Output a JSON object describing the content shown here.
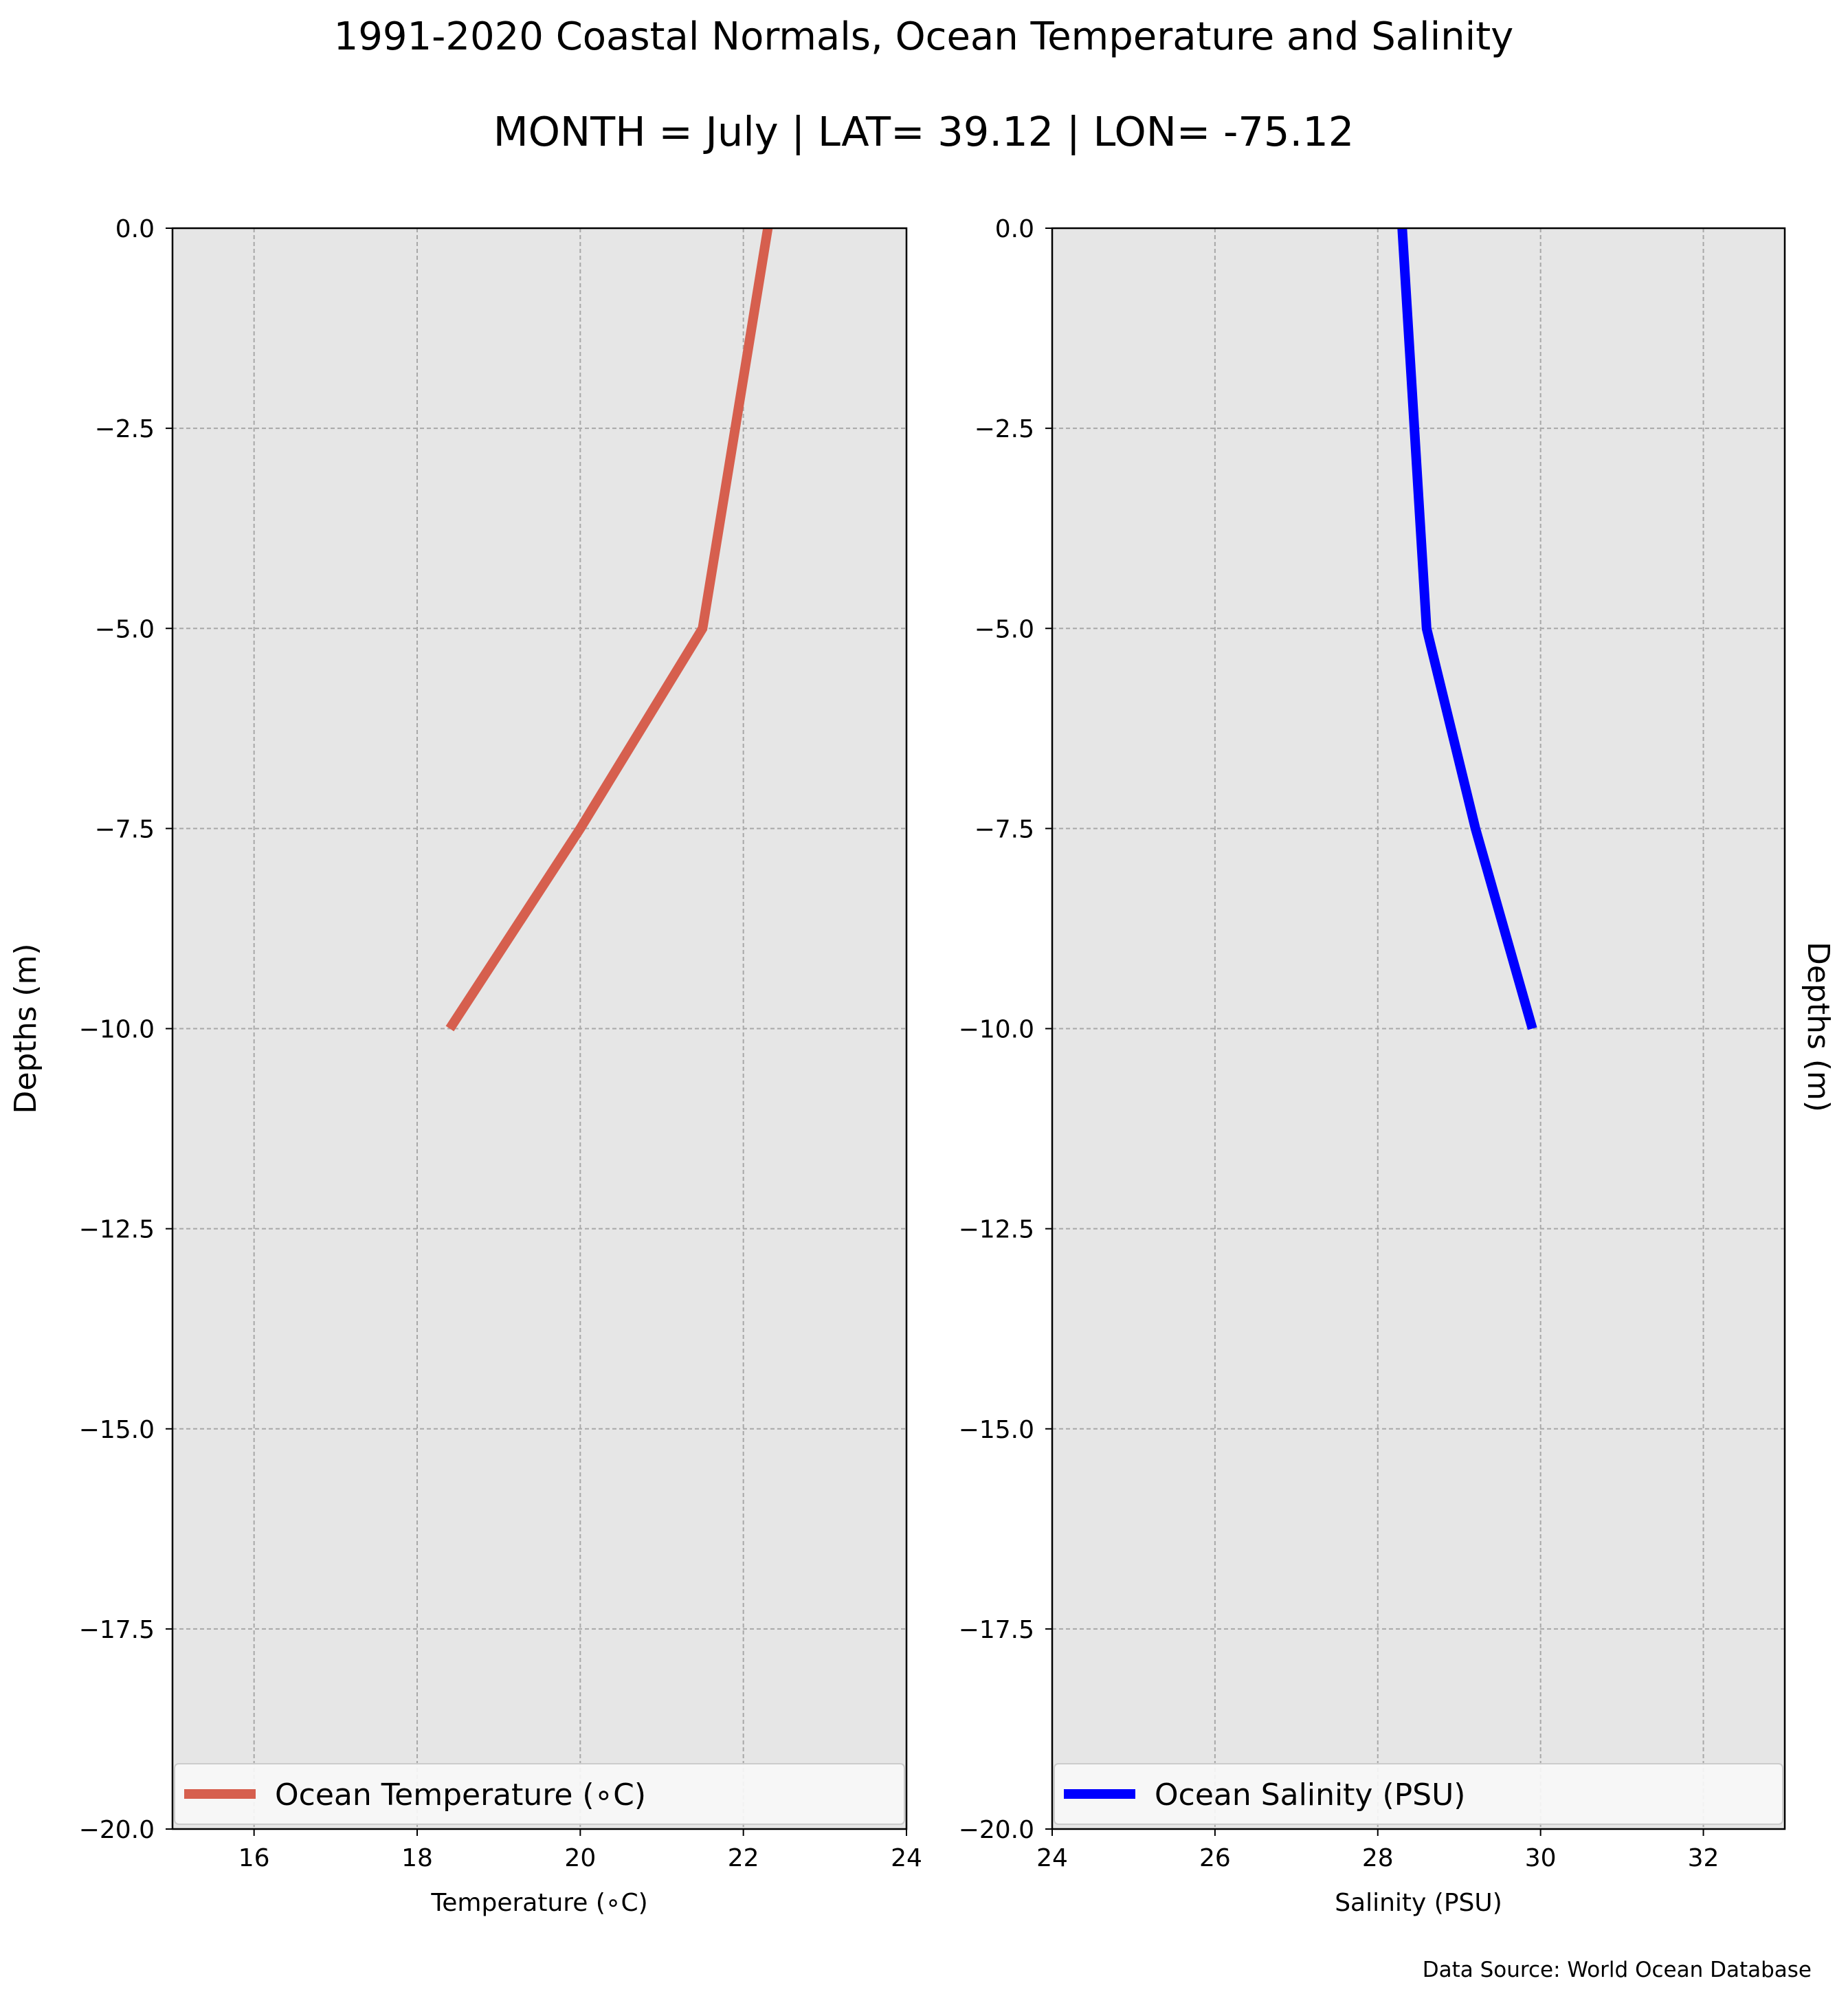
{
  "figure": {
    "title": "1991-2020 Coastal Normals, Ocean Temperature and Salinity",
    "subtitle": "MONTH = July | LAT= 39.12 | LON= -75.12",
    "source": "Data Source: World Ocean Database"
  },
  "chart_data": [
    {
      "type": "line",
      "xlabel": "Temperature (∘C)",
      "ylabel": "Depths (m)",
      "xlim": [
        15,
        24
      ],
      "ylim": [
        -20,
        0
      ],
      "xticks": [
        16,
        18,
        20,
        22,
        24
      ],
      "xtick_labels": [
        "16",
        "18",
        "20",
        "22",
        "24"
      ],
      "yticks": [
        0,
        -2.5,
        -5,
        -7.5,
        -10,
        -12.5,
        -15,
        -17.5,
        -20
      ],
      "ytick_labels": [
        "0.0",
        "−2.5",
        "−5.0",
        "−7.5",
        "−10.0",
        "−12.5",
        "−15.0",
        "−17.5",
        "−20.0"
      ],
      "grid": true,
      "legend_position": "bottom",
      "background": "#e6e6e6",
      "series": [
        {
          "name": "Ocean Temperature (∘C)",
          "color": "#d65f4e",
          "x": [
            22.3,
            21.5,
            20.0,
            18.4
          ],
          "y": [
            0,
            -5,
            -7.5,
            -10
          ]
        }
      ]
    },
    {
      "type": "line",
      "xlabel": "Salinity (PSU)",
      "ylabel": "Depths (m)",
      "xlim": [
        24,
        33
      ],
      "ylim": [
        -20,
        0
      ],
      "xticks": [
        24,
        26,
        28,
        30,
        32
      ],
      "xtick_labels": [
        "24",
        "26",
        "28",
        "30",
        "32"
      ],
      "yticks": [
        0,
        -2.5,
        -5,
        -7.5,
        -10,
        -12.5,
        -15,
        -17.5,
        -20
      ],
      "ytick_labels": [
        "0.0",
        "−2.5",
        "−5.0",
        "−7.5",
        "−10.0",
        "−12.5",
        "−15.0",
        "−17.5",
        "−20.0"
      ],
      "grid": true,
      "legend_position": "bottom",
      "background": "#e6e6e6",
      "series": [
        {
          "name": "Ocean Salinity (PSU)",
          "color": "#0000ff",
          "x": [
            28.3,
            28.6,
            29.2,
            29.9
          ],
          "y": [
            0,
            -5,
            -7.5,
            -10
          ]
        }
      ]
    }
  ]
}
